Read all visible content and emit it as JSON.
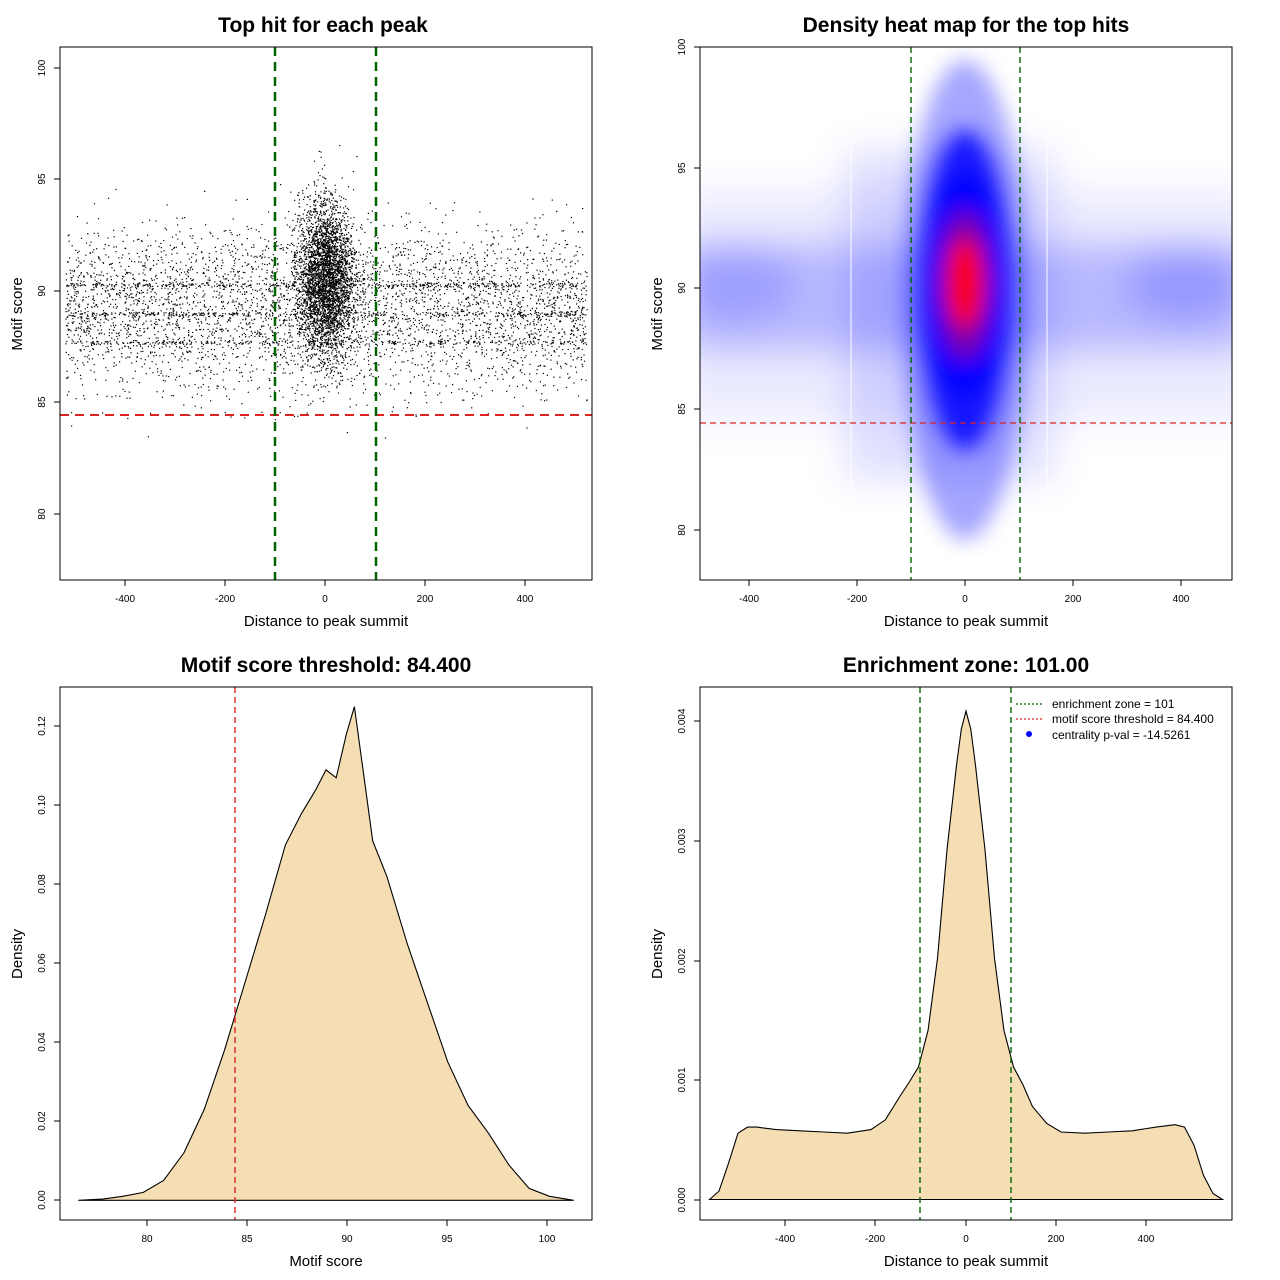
{
  "chart_data": [
    {
      "id": "scatter",
      "type": "scatter",
      "title": "Top hit for each peak",
      "xlabel": "Distance to peak summit",
      "ylabel": "Motif score",
      "xlim": [
        -500,
        500
      ],
      "ylim": [
        77,
        101
      ],
      "xticks": [
        "-400",
        "-200",
        "0",
        "200",
        "400"
      ],
      "yticks": [
        "80",
        "85",
        "90",
        "95",
        "100"
      ],
      "point_color": "#000000",
      "points_description": "dense cloud of top hits, concentrated around distance 0 and score ~90",
      "hlines": [
        {
          "y": 84.4,
          "color": "#dd2222",
          "style": "dashed"
        }
      ],
      "vlines": [
        {
          "x": -101,
          "color": "#006400",
          "style": "dashed"
        },
        {
          "x": 101,
          "color": "#006400",
          "style": "dashed"
        }
      ]
    },
    {
      "id": "heatmap",
      "type": "heatmap",
      "title": "Density heat map for the top hits",
      "xlabel": "Distance to peak summit",
      "ylabel": "Motif score",
      "xlim": [
        -490,
        490
      ],
      "ylim": [
        78,
        100
      ],
      "xticks": [
        "-400",
        "-200",
        "0",
        "200",
        "400"
      ],
      "yticks": [
        "80",
        "85",
        "90",
        "95",
        "100"
      ],
      "colors": [
        "#ffffff",
        "#0000ff",
        "#ff0000"
      ],
      "peak": {
        "x": 0,
        "y": 90.3
      },
      "hlines": [
        {
          "y": 84.4,
          "color": "#dd2222",
          "style": "dashed"
        }
      ],
      "vlines": [
        {
          "x": -101,
          "color": "#006400",
          "style": "dashed"
        },
        {
          "x": 101,
          "color": "#006400",
          "style": "dashed"
        }
      ]
    },
    {
      "id": "score-density",
      "type": "area",
      "title": "Motif score threshold: 84.400",
      "xlabel": "Motif score",
      "ylabel": "Density",
      "xlim": [
        75.9,
        102.1
      ],
      "ylim": [
        -0.005,
        0.13
      ],
      "xticks": [
        "80",
        "85",
        "90",
        "95",
        "100"
      ],
      "yticks": [
        "0.00",
        "0.02",
        "0.04",
        "0.06",
        "0.08",
        "0.10",
        "0.12"
      ],
      "fill": "#f5deb3",
      "x": [
        76.8,
        78,
        79,
        80,
        81,
        82,
        83,
        84,
        85,
        86,
        87,
        87.8,
        88.5,
        89,
        89.5,
        90,
        90.4,
        90.8,
        91.3,
        92,
        93,
        94,
        95,
        96,
        97,
        97.5,
        98,
        98.5,
        99,
        100,
        101.2
      ],
      "values": [
        0,
        0.0003,
        0.001,
        0.002,
        0.005,
        0.012,
        0.023,
        0.038,
        0.055,
        0.072,
        0.09,
        0.098,
        0.104,
        0.109,
        0.107,
        0.118,
        0.125,
        0.11,
        0.091,
        0.082,
        0.065,
        0.05,
        0.035,
        0.024,
        0.017,
        0.013,
        0.009,
        0.006,
        0.003,
        0.001,
        0
      ],
      "vlines": [
        {
          "x": 84.4,
          "color": "#dd2222",
          "style": "dashed"
        }
      ]
    },
    {
      "id": "distance-density",
      "type": "area",
      "title": "Enrichment zone: 101.00",
      "xlabel": "Distance to peak summit",
      "ylabel": "Density",
      "xlim": [
        -560,
        560
      ],
      "ylim": [
        -0.00017,
        0.00425
      ],
      "xticks": [
        "-400",
        "-200",
        "0",
        "200",
        "400"
      ],
      "yticks": [
        "0.000",
        "0.001",
        "0.002",
        "0.003",
        "0.004"
      ],
      "fill": "#f5deb3",
      "x": [
        -540,
        -520,
        -500,
        -480,
        -460,
        -440,
        -400,
        -350,
        -300,
        -250,
        -200,
        -170,
        -140,
        -120,
        -100,
        -80,
        -60,
        -40,
        -20,
        -10,
        0,
        10,
        20,
        40,
        60,
        80,
        100,
        120,
        140,
        170,
        200,
        250,
        300,
        350,
        400,
        440,
        460,
        480,
        500,
        520,
        540
      ],
      "values": [
        0,
        7e-05,
        0.0003,
        0.00055,
        0.0006,
        0.0006,
        0.00058,
        0.00057,
        0.00056,
        0.00055,
        0.00058,
        0.00066,
        0.00085,
        0.00097,
        0.0011,
        0.0014,
        0.002,
        0.0029,
        0.0036,
        0.0039,
        0.00405,
        0.0039,
        0.0036,
        0.0029,
        0.002,
        0.0014,
        0.0011,
        0.00095,
        0.00077,
        0.00063,
        0.00056,
        0.00055,
        0.00056,
        0.00057,
        0.0006,
        0.00062,
        0.0006,
        0.00045,
        0.0002,
        5e-05,
        0
      ],
      "vlines": [
        {
          "x": -101,
          "color": "#006400",
          "style": "dashed"
        },
        {
          "x": 101,
          "color": "#006400",
          "style": "dashed"
        }
      ],
      "legend": {
        "placement": "top-right",
        "entries": [
          {
            "label": "enrichment zone = 101",
            "color": "#006400",
            "style": "dotted-line"
          },
          {
            "label": "motif score threshold = 84.400",
            "color": "#dd2222",
            "style": "dotted-line"
          },
          {
            "label": "centrality p-val = -14.5261",
            "color": "#0000ff",
            "style": "dot"
          }
        ]
      }
    }
  ]
}
